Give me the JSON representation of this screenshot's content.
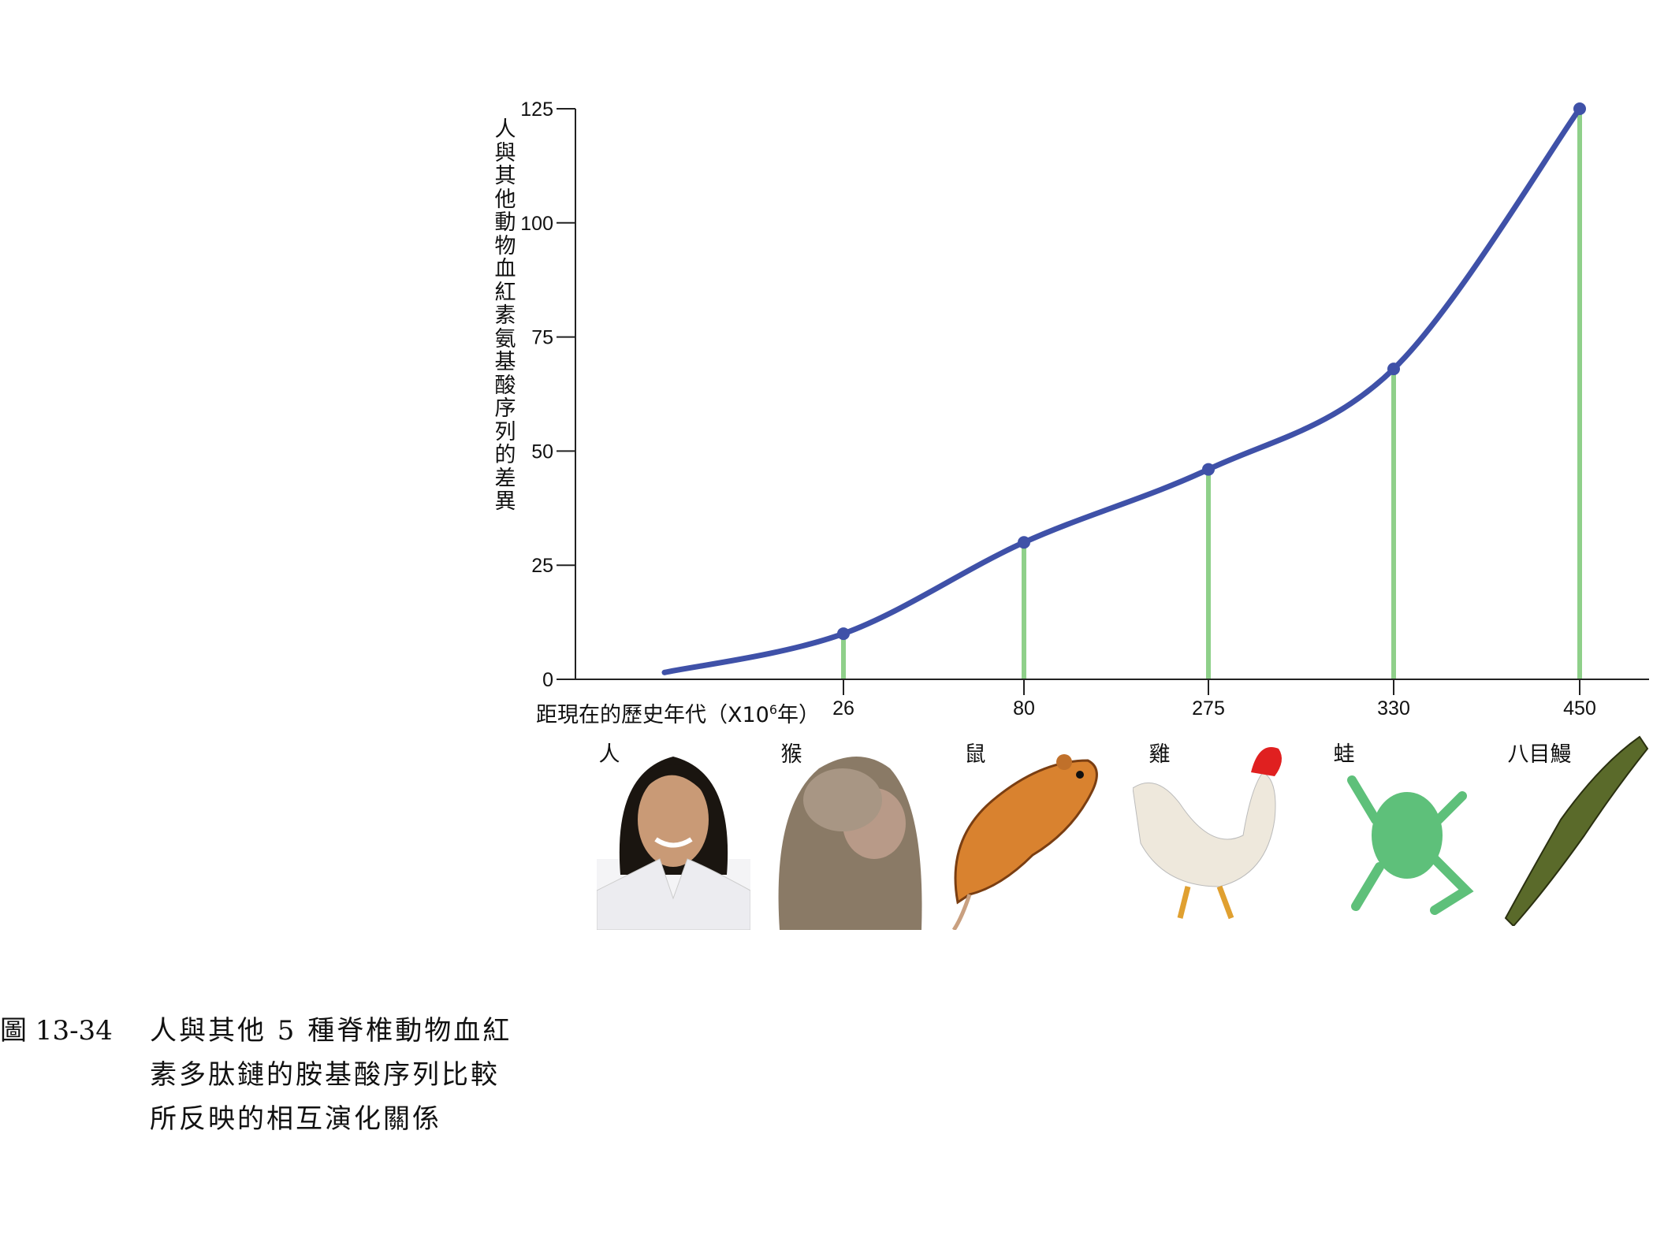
{
  "chart_data": {
    "type": "line",
    "title": "",
    "ylabel": "人與其他動物血紅素氨基酸序列的差異",
    "xlabel_prefix": "距現在的歷史年代（X10",
    "xlabel_sup": "6",
    "xlabel_suffix": "年）",
    "ylim": [
      0,
      125
    ],
    "yticks": [
      "0",
      "25",
      "50",
      "75",
      "100",
      "125"
    ],
    "x": [
      "26",
      "80",
      "275",
      "330",
      "450"
    ],
    "values": [
      10,
      30,
      46,
      68,
      125
    ],
    "line_start_value": 1.5,
    "line_color": "#3f51a8",
    "drop_line_color": "#8fd08a",
    "grid": false,
    "animals": [
      "人",
      "猴",
      "鼠",
      "雞",
      "蛙",
      "八目鰻"
    ]
  },
  "caption": {
    "number": "圖 13-34",
    "lines": [
      "人與其他 5 種脊椎動物血紅",
      "素多肽鏈的胺基酸序列比較",
      "所反映的相互演化關係"
    ]
  }
}
